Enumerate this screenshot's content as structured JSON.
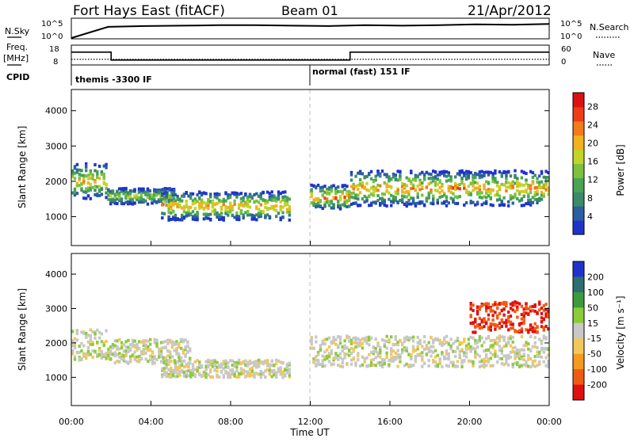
{
  "header": {
    "station": "Fort Hays East (fitACF)",
    "beam": "Beam 01",
    "date": "21/Apr/2012"
  },
  "chart_data": [
    {
      "type": "line",
      "panel": "noise",
      "left_label": "N.Sky",
      "right_label": "N.Search",
      "left_ticks": [
        "10^5",
        "10^0"
      ],
      "right_ticks": [
        "10^5",
        "10^0"
      ],
      "series": [
        {
          "values_log10": [
            0.2,
            2.9,
            3.1,
            3.2,
            3.3,
            3.3,
            3.2,
            3.1,
            3.3,
            3.2,
            3.3,
            3.5,
            3.4,
            3.6
          ]
        }
      ]
    },
    {
      "type": "line",
      "panel": "frequency",
      "left_label": "Freq.",
      "left_unit": "[MHz]",
      "left_ticks": [
        18,
        8
      ],
      "right_ticks": [
        60,
        0
      ],
      "right_label": "Nave",
      "cpid_label": "CPID",
      "freq_steps": [
        {
          "x_start": 0.0,
          "x_end": 2.0,
          "freq": 14.5
        },
        {
          "x_start": 2.0,
          "x_end": 14.0,
          "freq": 10.5
        },
        {
          "x_start": 14.0,
          "x_end": 24.0,
          "freq": 14.5
        }
      ],
      "nave_steps": [
        {
          "x_start": 0.0,
          "x_end": 2.0,
          "nave": 17
        },
        {
          "x_start": 2.0,
          "x_end": 14.0,
          "nave": 17
        },
        {
          "x_start": 14.0,
          "x_end": 24.0,
          "nave": 17
        }
      ],
      "cpid_segments": [
        {
          "x_start": 0.0,
          "label": "themis -3300 IF"
        },
        {
          "x_start": 12.0,
          "label": "normal (fast) 151 IF"
        }
      ]
    },
    {
      "type": "heatmap",
      "panel": "power",
      "ylabel": "Slant Range [km]",
      "yticks": [
        1000,
        2000,
        3000,
        4000
      ],
      "ylim": [
        180,
        4600
      ],
      "xlim": [
        0,
        24
      ],
      "colorbar_label": "Power [dB]",
      "colorbar_ticks": [
        4,
        8,
        12,
        16,
        20,
        24,
        28
      ],
      "colorbar_range": [
        0,
        31
      ],
      "colors": [
        "#1f33cc",
        "#2a5fa0",
        "#3b8a6a",
        "#49a454",
        "#7cc23f",
        "#c2d428",
        "#f2b21e",
        "#f47a1a",
        "#ee3b18",
        "#dd1111"
      ],
      "bands": [
        {
          "x_start": 0.0,
          "x_end": 1.8,
          "range_low": 1500,
          "range_high": 2500,
          "peak_power": 22
        },
        {
          "x_start": 1.8,
          "x_end": 5.2,
          "range_low": 1350,
          "range_high": 1800,
          "peak_power": 18
        },
        {
          "x_start": 4.5,
          "x_end": 11.0,
          "range_low": 900,
          "range_high": 1700,
          "peak_power": 24
        },
        {
          "x_start": 12.0,
          "x_end": 14.0,
          "range_low": 1200,
          "range_high": 1900,
          "peak_power": 26
        },
        {
          "x_start": 14.0,
          "x_end": 24.0,
          "range_low": 1300,
          "range_high": 2300,
          "peak_power": 24
        }
      ]
    },
    {
      "type": "heatmap",
      "panel": "velocity",
      "ylabel": "Slant Range [km]",
      "yticks": [
        1000,
        2000,
        3000,
        4000
      ],
      "ylim": [
        180,
        4600
      ],
      "xlim": [
        0,
        24
      ],
      "xticks": [
        "00:00",
        "04:00",
        "08:00",
        "12:00",
        "16:00",
        "20:00",
        "00:00"
      ],
      "xlabel": "Time UT",
      "colorbar_label": "Velocity [m s⁻¹]",
      "colorbar_ticks": [
        200,
        100,
        50,
        15,
        -15,
        -50,
        -100,
        -200
      ],
      "colors": [
        "#1f33cc",
        "#2c6f6e",
        "#3d9a3d",
        "#8acc3a",
        "#c8c8c8",
        "#f2c85a",
        "#f49a1e",
        "#ef5b15",
        "#e01010"
      ],
      "bands": [
        {
          "x_start": 0.0,
          "x_end": 1.8,
          "range_low": 1500,
          "range_high": 2400,
          "velocity": 0
        },
        {
          "x_start": 1.8,
          "x_end": 6.0,
          "range_low": 1400,
          "range_high": 2100,
          "velocity": 0
        },
        {
          "x_start": 4.5,
          "x_end": 11.0,
          "range_low": 1000,
          "range_high": 1500,
          "velocity": 0
        },
        {
          "x_start": 12.0,
          "x_end": 24.0,
          "range_low": 1300,
          "range_high": 2200,
          "velocity": 0
        },
        {
          "x_start": 20.0,
          "x_end": 24.0,
          "range_low": 2300,
          "range_high": 3200,
          "velocity": -150
        }
      ]
    }
  ]
}
